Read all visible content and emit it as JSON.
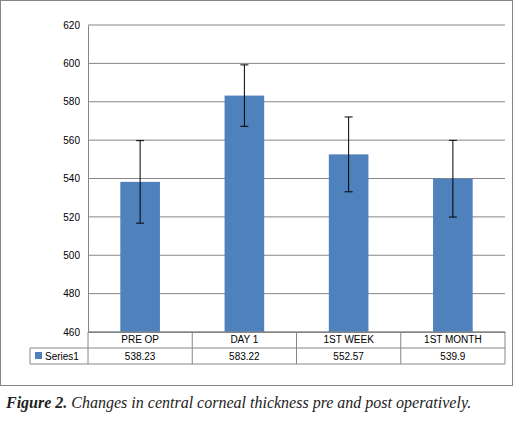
{
  "chart_data": {
    "type": "bar",
    "title": "Figure 2.",
    "subtitle": "Changes in central corneal thickness pre and post operatively.",
    "categories": [
      "PRE OP",
      "DAY 1",
      "1ST WEEK",
      "1ST MONTH"
    ],
    "series": [
      {
        "name": "Series1",
        "color": "#4f81bd",
        "values": [
          538.23,
          583.22,
          552.57,
          539.9
        ],
        "errors": [
          21.5,
          16,
          19.5,
          20
        ]
      }
    ],
    "ylim": [
      460,
      620
    ],
    "yticks": [
      460,
      480,
      500,
      520,
      540,
      560,
      580,
      600,
      620
    ],
    "grid": true,
    "data_labels": true
  }
}
